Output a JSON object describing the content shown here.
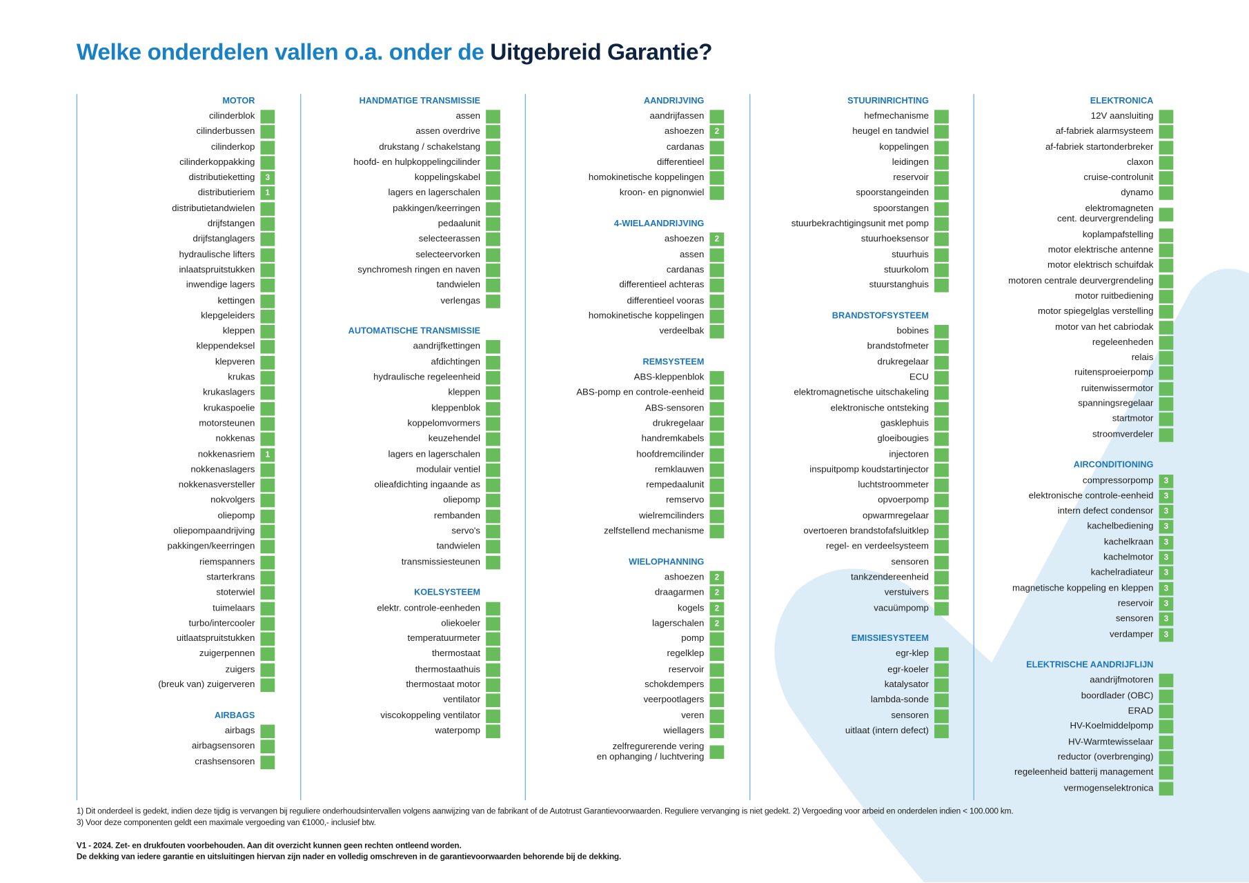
{
  "header": {
    "title_start": "Welke onderdelen vallen o.a. onder de",
    "title_end": "Uitgebreid Garantie?"
  },
  "columns": [
    {
      "sections": [
        {
          "title": "MOTOR",
          "items": [
            {
              "label": "cilinderblok"
            },
            {
              "label": "cilinderbussen"
            },
            {
              "label": "cilinderkop"
            },
            {
              "label": "cilinderkoppakking"
            },
            {
              "label": "distributieketting",
              "note": 3
            },
            {
              "label": "distributieriem",
              "note": 1
            },
            {
              "label": "distributietandwielen"
            },
            {
              "label": "drijfstangen"
            },
            {
              "label": "drijfstanglagers"
            },
            {
              "label": "hydraulische lifters"
            },
            {
              "label": "inlaatspruitstukken"
            },
            {
              "label": "inwendige lagers"
            },
            {
              "label": "kettingen"
            },
            {
              "label": "klepgeleiders"
            },
            {
              "label": "kleppen"
            },
            {
              "label": "kleppendeksel"
            },
            {
              "label": "klepveren"
            },
            {
              "label": "krukas"
            },
            {
              "label": "krukaslagers"
            },
            {
              "label": "krukaspoelie"
            },
            {
              "label": "motorsteunen"
            },
            {
              "label": "nokkenas"
            },
            {
              "label": "nokkenasriem",
              "note": 1
            },
            {
              "label": "nokkenaslagers"
            },
            {
              "label": "nokkenasversteller"
            },
            {
              "label": "nokvolgers"
            },
            {
              "label": "oliepomp"
            },
            {
              "label": "oliepompaandrijving"
            },
            {
              "label": "pakkingen/keerringen"
            },
            {
              "label": "riemspanners"
            },
            {
              "label": "starterkrans"
            },
            {
              "label": "stoterwiel"
            },
            {
              "label": "tuimelaars"
            },
            {
              "label": "turbo/intercooler"
            },
            {
              "label": "uitlaatspruitstukken"
            },
            {
              "label": "zuigerpennen"
            },
            {
              "label": "zuigers"
            },
            {
              "label": "(breuk van) zuigerveren"
            }
          ]
        },
        {
          "title": "AIRBAGS",
          "items": [
            {
              "label": "airbags"
            },
            {
              "label": "airbagsensoren"
            },
            {
              "label": "crashsensoren"
            }
          ]
        }
      ]
    },
    {
      "sections": [
        {
          "title": "HANDMATIGE TRANSMISSIE",
          "items": [
            {
              "label": "assen"
            },
            {
              "label": "assen overdrive"
            },
            {
              "label": "drukstang / schakelstang"
            },
            {
              "label": "hoofd- en hulpkoppelingcilinder"
            },
            {
              "label": "koppelingskabel"
            },
            {
              "label": "lagers en lagerschalen"
            },
            {
              "label": "pakkingen/keerringen"
            },
            {
              "label": "pedaalunit"
            },
            {
              "label": "selecteerassen"
            },
            {
              "label": "selecteervorken"
            },
            {
              "label": "synchromesh ringen en naven"
            },
            {
              "label": "tandwielen"
            },
            {
              "label": "verlengas"
            }
          ]
        },
        {
          "title": "AUTOMATISCHE TRANSMISSIE",
          "items": [
            {
              "label": "aandrijfkettingen"
            },
            {
              "label": "afdichtingen"
            },
            {
              "label": "hydraulische regeleenheid"
            },
            {
              "label": "kleppen"
            },
            {
              "label": "kleppenblok"
            },
            {
              "label": "koppelomvormers"
            },
            {
              "label": "keuzehendel"
            },
            {
              "label": "lagers en lagerschalen"
            },
            {
              "label": "modulair ventiel"
            },
            {
              "label": "olieafdichting ingaande as"
            },
            {
              "label": "oliepomp"
            },
            {
              "label": "rembanden"
            },
            {
              "label": "servo's"
            },
            {
              "label": "tandwielen"
            },
            {
              "label": "transmissiesteunen"
            }
          ]
        },
        {
          "title": "KOELSYSTEEM",
          "items": [
            {
              "label": "elektr. controle-eenheden"
            },
            {
              "label": "oliekoeler"
            },
            {
              "label": "temperatuurmeter"
            },
            {
              "label": "thermostaat"
            },
            {
              "label": "thermostaathuis"
            },
            {
              "label": "thermostaat motor"
            },
            {
              "label": "ventilator"
            },
            {
              "label": "viscokoppeling ventilator"
            },
            {
              "label": "waterpomp"
            }
          ]
        }
      ]
    },
    {
      "sections": [
        {
          "title": "AANDRIJVING",
          "items": [
            {
              "label": "aandrijfassen"
            },
            {
              "label": "ashoezen",
              "note": 2
            },
            {
              "label": "cardanas"
            },
            {
              "label": "differentieel"
            },
            {
              "label": "homokinetische koppelingen"
            },
            {
              "label": "kroon- en pignonwiel"
            }
          ]
        },
        {
          "title": "4-WIELAANDRIJVING",
          "items": [
            {
              "label": "ashoezen",
              "note": 2
            },
            {
              "label": "assen"
            },
            {
              "label": "cardanas"
            },
            {
              "label": "differentieel achteras"
            },
            {
              "label": "differentieel vooras"
            },
            {
              "label": "homokinetische koppelingen"
            },
            {
              "label": "verdeelbak"
            }
          ]
        },
        {
          "title": "REMSYSTEEM",
          "items": [
            {
              "label": "ABS-kleppenblok"
            },
            {
              "label": "ABS-pomp en controle-eenheid"
            },
            {
              "label": "ABS-sensoren"
            },
            {
              "label": "drukregelaar"
            },
            {
              "label": "handremkabels"
            },
            {
              "label": "hoofdremcilinder"
            },
            {
              "label": "remklauwen"
            },
            {
              "label": "rempedaalunit"
            },
            {
              "label": "remservo"
            },
            {
              "label": "wielremcilinders"
            },
            {
              "label": "zelfstellend mechanisme"
            }
          ]
        },
        {
          "title": "WIELOPHANNING",
          "items": [
            {
              "label": "ashoezen",
              "note": 2
            },
            {
              "label": "draagarmen",
              "note": 2
            },
            {
              "label": "kogels",
              "note": 2
            },
            {
              "label": "lagerschalen",
              "note": 2
            },
            {
              "label": "pomp"
            },
            {
              "label": "regelklep"
            },
            {
              "label": "reservoir"
            },
            {
              "label": "schokdempers"
            },
            {
              "label": "veerpootlagers"
            },
            {
              "label": "veren"
            },
            {
              "label": "wiellagers"
            },
            {
              "label": "zelfregurerende vering\nen ophanging / luchtvering"
            }
          ]
        }
      ]
    },
    {
      "sections": [
        {
          "title": "STUURINRICHTING",
          "items": [
            {
              "label": "hefmechanisme"
            },
            {
              "label": "heugel en tandwiel"
            },
            {
              "label": "koppelingen"
            },
            {
              "label": "leidingen"
            },
            {
              "label": "reservoir"
            },
            {
              "label": "spoorstangeinden"
            },
            {
              "label": "spoorstangen"
            },
            {
              "label": "stuurbekrachtigingsunit met pomp"
            },
            {
              "label": "stuurhoeksensor"
            },
            {
              "label": "stuurhuis"
            },
            {
              "label": "stuurkolom"
            },
            {
              "label": "stuurstanghuis"
            }
          ]
        },
        {
          "title": "BRANDSTOFSYSTEEM",
          "items": [
            {
              "label": "bobines"
            },
            {
              "label": "brandstofmeter"
            },
            {
              "label": "drukregelaar"
            },
            {
              "label": "ECU"
            },
            {
              "label": "elektromagnetische uitschakeling"
            },
            {
              "label": "elektronische ontsteking"
            },
            {
              "label": "gasklephuis"
            },
            {
              "label": "gloeibougies"
            },
            {
              "label": "injectoren"
            },
            {
              "label": "inspuitpomp koudstartinjector"
            },
            {
              "label": "luchtstroommeter"
            },
            {
              "label": "opvoerpomp"
            },
            {
              "label": "opwarmregelaar"
            },
            {
              "label": "overtoeren brandstofafsluitklep"
            },
            {
              "label": "regel- en verdeelsysteem"
            },
            {
              "label": "sensoren"
            },
            {
              "label": "tankzendereenheid"
            },
            {
              "label": "verstuivers"
            },
            {
              "label": "vacuümpomp"
            }
          ]
        },
        {
          "title": "EMISSIESYSTEEM",
          "items": [
            {
              "label": "egr-klep"
            },
            {
              "label": "egr-koeler"
            },
            {
              "label": "katalysator"
            },
            {
              "label": "lambda-sonde"
            },
            {
              "label": "sensoren"
            },
            {
              "label": "uitlaat (intern defect)"
            }
          ]
        }
      ]
    },
    {
      "sections": [
        {
          "title": "ELEKTRONICA",
          "items": [
            {
              "label": "12V aansluiting"
            },
            {
              "label": "af-fabriek alarmsysteem"
            },
            {
              "label": "af-fabriek startonderbreker"
            },
            {
              "label": "claxon"
            },
            {
              "label": "cruise-controlunit"
            },
            {
              "label": "dynamo"
            },
            {
              "label": "elektromagneten\ncent. deurvergrendeling"
            },
            {
              "label": "koplampafstelling"
            },
            {
              "label": "motor elektrische antenne"
            },
            {
              "label": "motor elektrisch schuifdak"
            },
            {
              "label": "motoren centrale deurvergrendeling"
            },
            {
              "label": "motor ruitbediening"
            },
            {
              "label": "motor spiegelglas verstelling"
            },
            {
              "label": "motor van het cabriodak"
            },
            {
              "label": "regeleenheden"
            },
            {
              "label": "relais"
            },
            {
              "label": "ruitensproeierpomp"
            },
            {
              "label": "ruitenwissermotor"
            },
            {
              "label": "spanningsregelaar"
            },
            {
              "label": "startmotor"
            },
            {
              "label": "stroomverdeler"
            }
          ]
        },
        {
          "title": "AIRCONDITIONING",
          "items": [
            {
              "label": "compressorpomp",
              "note": 3
            },
            {
              "label": "elektronische controle-eenheid",
              "note": 3
            },
            {
              "label": "intern defect condensor",
              "note": 3
            },
            {
              "label": "kachelbediening",
              "note": 3
            },
            {
              "label": "kachelkraan",
              "note": 3
            },
            {
              "label": "kachelmotor",
              "note": 3
            },
            {
              "label": "kachelradiateur",
              "note": 3
            },
            {
              "label": "magnetische koppeling en kleppen",
              "note": 3
            },
            {
              "label": "reservoir",
              "note": 3
            },
            {
              "label": "sensoren",
              "note": 3
            },
            {
              "label": "verdamper",
              "note": 3
            }
          ]
        },
        {
          "title": "ELEKTRISCHE AANDRIJFLIJN",
          "items": [
            {
              "label": "aandrijfmotoren"
            },
            {
              "label": "boordlader (OBC)"
            },
            {
              "label": "ERAD"
            },
            {
              "label": "HV-Koelmiddelpomp"
            },
            {
              "label": "HV-Warmtewisselaar"
            },
            {
              "label": "reductor (overbrenging)"
            },
            {
              "label": "regeleenheid batterij management"
            },
            {
              "label": "vermogenselektronica"
            }
          ]
        }
      ]
    }
  ],
  "footnotes": [
    "1) Dit onderdeel is gedekt, indien deze tijdig is vervangen bij reguliere onderhoudsintervallen volgens aanwijzing van de fabrikant of de Autotrust Garantievoorwaarden. Reguliere vervanging is niet gedekt. 2) Vergoeding voor arbeid en onderdelen indien < 100.000 km.",
    "3) Voor deze componenten geldt een maximale vergoeding van €1000,- inclusief btw."
  ],
  "disclaimer": [
    "V1 - 2024. Zet- en drukfouten voorbehouden. Aan dit overzicht kunnen geen rechten ontleend worden.",
    "De dekking van iedere garantie en uitsluitingen hiervan  zijn  nader en volledig omschreven in de garantievoorwaarden behorende bij de dekking."
  ]
}
